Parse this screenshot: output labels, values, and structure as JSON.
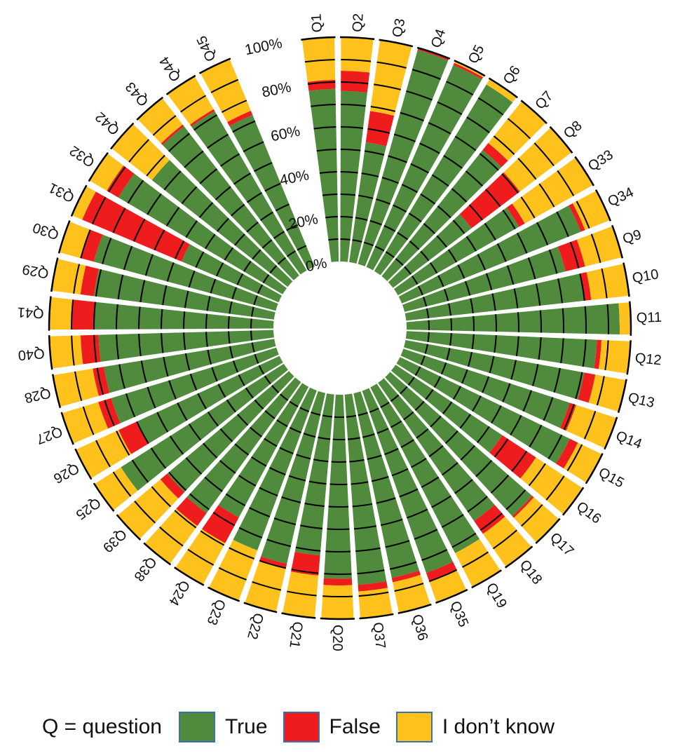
{
  "colors": {
    "True": "#4f8a3d",
    "False": "#ee1c1c",
    "I don't know": "#ffc21c",
    "ring_edge": "#000000"
  },
  "legend": {
    "note": "Q = question",
    "items": [
      {
        "label": "True",
        "color": "#4f8a3d"
      },
      {
        "label": "False",
        "color": "#ee1c1c"
      },
      {
        "label": "I don’t know",
        "color": "#ffc21c"
      }
    ]
  },
  "chart_data": {
    "type": "radial stacked bar",
    "title": "",
    "ylim": [
      0,
      100
    ],
    "y_unit": "%",
    "yticks": [
      "0%",
      "20%",
      "40%",
      "60%",
      "80%",
      "100%"
    ],
    "grid": "segment ticks every 10%",
    "legend_position": "bottom",
    "series_names": [
      "True",
      "False",
      "I don't know"
    ],
    "categories": [
      "Q1",
      "Q2",
      "Q3",
      "Q4",
      "Q5",
      "Q6",
      "Q7",
      "Q8",
      "Q33",
      "Q34",
      "Q9",
      "Q10",
      "Q11",
      "Q12",
      "Q13",
      "Q14",
      "Q15",
      "Q16",
      "Q17",
      "Q18",
      "Q19",
      "Q35",
      "Q36",
      "Q37",
      "Q20",
      "Q21",
      "Q22",
      "Q23",
      "Q24",
      "Q38",
      "Q39",
      "Q25",
      "Q26",
      "Q27",
      "Q28",
      "Q40",
      "Q41",
      "Q29",
      "Q30",
      "Q31",
      "Q32",
      "Q42",
      "Q43",
      "Q44",
      "Q45"
    ],
    "series": [
      {
        "name": "True",
        "values": [
          77,
          76,
          54,
          99,
          98,
          97,
          72,
          44,
          62,
          86,
          74,
          80,
          95,
          85,
          81,
          78,
          84,
          57,
          84,
          75,
          83,
          86,
          84,
          85,
          82,
          72,
          78,
          76,
          66,
          72,
          71,
          86,
          70,
          77,
          77,
          78,
          80,
          81,
          84,
          47,
          85,
          77,
          84,
          82,
          73
        ]
      },
      {
        "name": "False",
        "values": [
          4,
          9,
          14,
          1,
          1,
          0,
          4,
          27,
          3,
          2,
          9,
          3,
          0,
          2,
          5,
          3,
          4,
          18,
          1,
          7,
          0,
          4,
          2,
          3,
          3,
          9,
          2,
          0,
          13,
          7,
          4,
          0,
          9,
          6,
          5,
          8,
          10,
          6,
          6,
          48,
          6,
          0,
          1,
          1,
          2
        ]
      },
      {
        "name": "I don't know",
        "values": [
          19,
          15,
          32,
          0,
          1,
          3,
          24,
          29,
          35,
          12,
          17,
          17,
          5,
          13,
          14,
          19,
          12,
          25,
          15,
          18,
          17,
          10,
          14,
          12,
          15,
          19,
          20,
          24,
          21,
          21,
          25,
          14,
          21,
          17,
          18,
          14,
          10,
          13,
          10,
          5,
          9,
          23,
          15,
          17,
          25
        ]
      }
    ]
  }
}
